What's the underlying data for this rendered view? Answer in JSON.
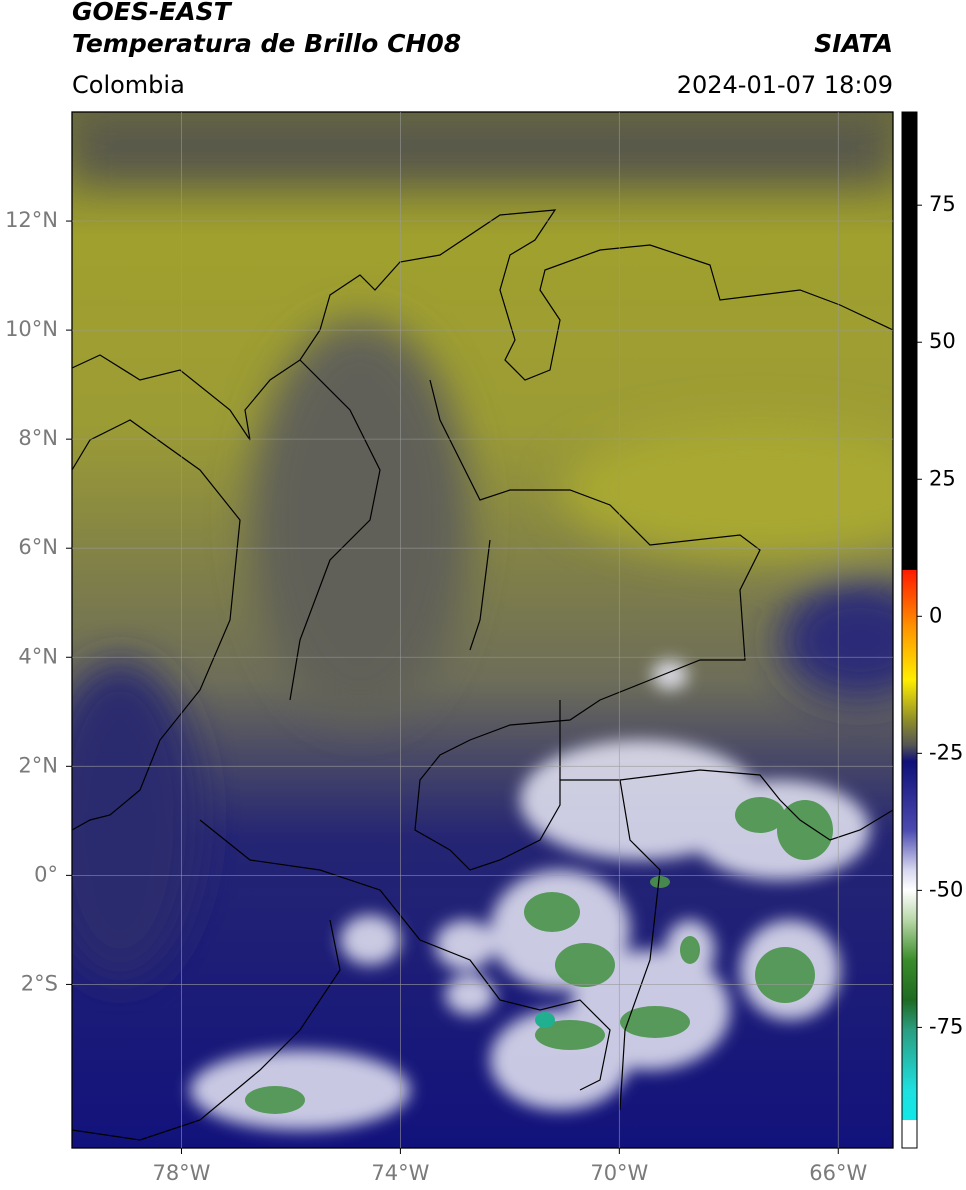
{
  "header": {
    "title_line1": "GOES-EAST",
    "title_line2": "Temperatura de Brillo CH08",
    "source": "SIATA",
    "region": "Colombia",
    "timestamp": "2024-01-07 18:09"
  },
  "map": {
    "latlim": [
      -5,
      14
    ],
    "lonlim": [
      -80,
      -65
    ],
    "lat_ticks": [
      {
        "value": 12,
        "label": "12°N"
      },
      {
        "value": 10,
        "label": "10°N"
      },
      {
        "value": 8,
        "label": "8°N"
      },
      {
        "value": 6,
        "label": "6°N"
      },
      {
        "value": 4,
        "label": "4°N"
      },
      {
        "value": 2,
        "label": "2°N"
      },
      {
        "value": 0,
        "label": "0°"
      },
      {
        "value": -2,
        "label": "2°S"
      }
    ],
    "lon_ticks": [
      {
        "value": -78,
        "label": "78°W"
      },
      {
        "value": -74,
        "label": "74°W"
      },
      {
        "value": -70,
        "label": "70°W"
      },
      {
        "value": -66,
        "label": "66°W"
      }
    ]
  },
  "colorbar": {
    "lim": [
      -97,
      92
    ],
    "ticks": [
      75,
      50,
      25,
      0,
      -25,
      -50,
      -75
    ]
  }
}
